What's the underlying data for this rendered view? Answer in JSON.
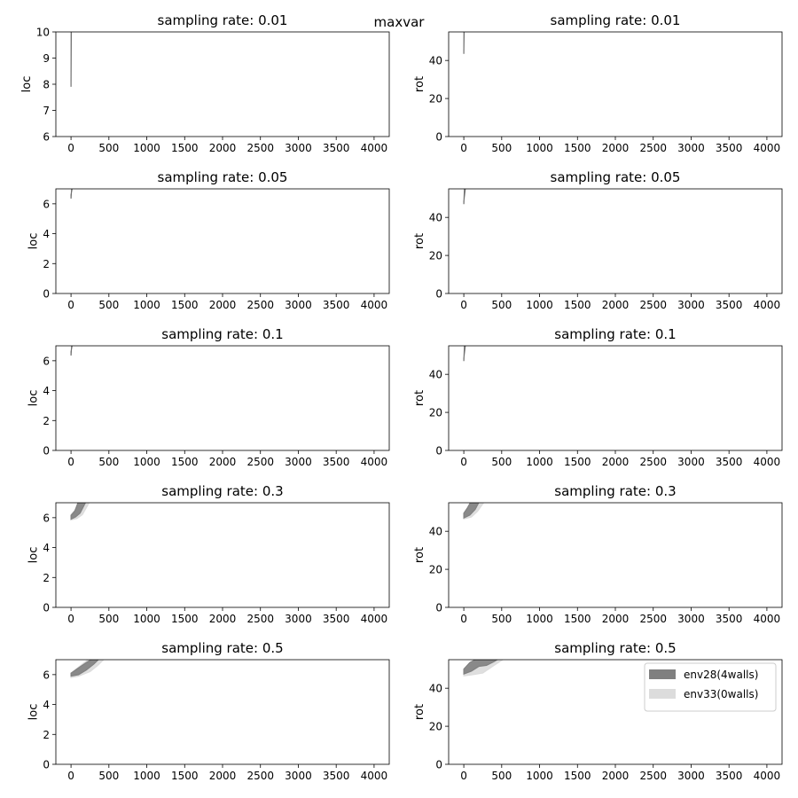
{
  "figure": {
    "suptitle": "maxvar",
    "legend": [
      {
        "label": "env28(4walls)",
        "color": "#808080"
      },
      {
        "label": "env33(0walls)",
        "color": "#dcdcdc"
      }
    ]
  },
  "chart_data": [
    {
      "type": "area",
      "title": "sampling rate: 0.01",
      "xlabel": "",
      "ylabel": "loc",
      "xlim": [
        -200,
        4200
      ],
      "ylim": [
        6,
        10
      ],
      "xticks": [
        0,
        500,
        1000,
        1500,
        2000,
        2500,
        3000,
        3500,
        4000
      ],
      "yticks": [
        6,
        7,
        8,
        9,
        10
      ],
      "series": [
        {
          "color": "#707070",
          "opacity": 1,
          "lower": [
            [
              0,
              7.9
            ],
            [
              3,
              10.5
            ]
          ],
          "upper": [
            [
              0,
              8.1
            ],
            [
              5,
              10.5
            ]
          ]
        }
      ]
    },
    {
      "type": "area",
      "title": "sampling rate: 0.01",
      "xlabel": "",
      "ylabel": "rot",
      "xlim": [
        -200,
        4200
      ],
      "ylim": [
        0,
        55
      ],
      "xticks": [
        0,
        500,
        1000,
        1500,
        2000,
        2500,
        3000,
        3500,
        4000
      ],
      "yticks": [
        0,
        20,
        40
      ],
      "series": [
        {
          "color": "#707070",
          "opacity": 1,
          "lower": [
            [
              0,
              43.5
            ],
            [
              2,
              56
            ]
          ],
          "upper": [
            [
              0,
              45
            ],
            [
              5,
              56
            ]
          ]
        }
      ]
    },
    {
      "type": "area",
      "title": "sampling rate: 0.05",
      "xlabel": "",
      "ylabel": "loc",
      "xlim": [
        -200,
        4200
      ],
      "ylim": [
        0,
        7
      ],
      "xticks": [
        0,
        500,
        1000,
        1500,
        2000,
        2500,
        3000,
        3500,
        4000
      ],
      "yticks": [
        0,
        2,
        4,
        6
      ],
      "series": [
        {
          "color": "#707070",
          "opacity": 1,
          "lower": [
            [
              0,
              6.35
            ],
            [
              10,
              7.1
            ]
          ],
          "upper": [
            [
              0,
              6.6
            ],
            [
              18,
              7.1
            ]
          ]
        }
      ]
    },
    {
      "type": "area",
      "title": "sampling rate: 0.05",
      "xlabel": "",
      "ylabel": "rot",
      "xlim": [
        -200,
        4200
      ],
      "ylim": [
        0,
        55
      ],
      "xticks": [
        0,
        500,
        1000,
        1500,
        2000,
        2500,
        3000,
        3500,
        4000
      ],
      "yticks": [
        0,
        20,
        40
      ],
      "series": [
        {
          "color": "#707070",
          "opacity": 1,
          "lower": [
            [
              0,
              47
            ],
            [
              10,
              56
            ]
          ],
          "upper": [
            [
              0,
              48.5
            ],
            [
              22,
              56
            ]
          ]
        }
      ]
    },
    {
      "type": "area",
      "title": "sampling rate: 0.1",
      "xlabel": "",
      "ylabel": "loc",
      "xlim": [
        -200,
        4200
      ],
      "ylim": [
        0,
        7
      ],
      "xticks": [
        0,
        500,
        1000,
        1500,
        2000,
        2500,
        3000,
        3500,
        4000
      ],
      "yticks": [
        0,
        2,
        4,
        6
      ],
      "series": [
        {
          "color": "#707070",
          "opacity": 1,
          "lower": [
            [
              0,
              6.35
            ],
            [
              10,
              7.1
            ]
          ],
          "upper": [
            [
              0,
              6.6
            ],
            [
              18,
              7.1
            ]
          ]
        }
      ]
    },
    {
      "type": "area",
      "title": "sampling rate: 0.1",
      "xlabel": "",
      "ylabel": "rot",
      "xlim": [
        -200,
        4200
      ],
      "ylim": [
        0,
        55
      ],
      "xticks": [
        0,
        500,
        1000,
        1500,
        2000,
        2500,
        3000,
        3500,
        4000
      ],
      "yticks": [
        0,
        20,
        40
      ],
      "series": [
        {
          "color": "#707070",
          "opacity": 1,
          "lower": [
            [
              0,
              47
            ],
            [
              10,
              56
            ]
          ],
          "upper": [
            [
              0,
              48.5
            ],
            [
              22,
              56
            ]
          ]
        }
      ]
    },
    {
      "type": "area",
      "title": "sampling rate: 0.3",
      "xlabel": "",
      "ylabel": "loc",
      "xlim": [
        -200,
        4200
      ],
      "ylim": [
        0,
        7
      ],
      "xticks": [
        0,
        500,
        1000,
        1500,
        2000,
        2500,
        3000,
        3500,
        4000
      ],
      "yticks": [
        0,
        2,
        4,
        6
      ],
      "series": [
        {
          "color": "#dcdcdc",
          "opacity": 0.9,
          "lower": [
            [
              0,
              5.85
            ],
            [
              80,
              5.95
            ],
            [
              150,
              6.2
            ],
            [
              250,
              7.1
            ]
          ],
          "upper": [
            [
              0,
              6.2
            ],
            [
              50,
              6.5
            ],
            [
              120,
              7.1
            ]
          ]
        },
        {
          "color": "#808080",
          "opacity": 0.9,
          "lower": [
            [
              0,
              5.9
            ],
            [
              60,
              6.05
            ],
            [
              120,
              6.3
            ],
            [
              200,
              7.1
            ]
          ],
          "upper": [
            [
              0,
              6.15
            ],
            [
              50,
              6.45
            ],
            [
              100,
              7.1
            ]
          ]
        }
      ]
    },
    {
      "type": "area",
      "title": "sampling rate: 0.3",
      "xlabel": "",
      "ylabel": "rot",
      "xlim": [
        -200,
        4200
      ],
      "ylim": [
        0,
        55
      ],
      "xticks": [
        0,
        500,
        1000,
        1500,
        2000,
        2500,
        3000,
        3500,
        4000
      ],
      "yticks": [
        0,
        20,
        40
      ],
      "series": [
        {
          "color": "#dcdcdc",
          "opacity": 0.9,
          "lower": [
            [
              0,
              46.5
            ],
            [
              100,
              47.5
            ],
            [
              180,
              50.5
            ],
            [
              280,
              56
            ]
          ],
          "upper": [
            [
              0,
              49
            ],
            [
              60,
              52
            ],
            [
              120,
              56
            ]
          ]
        },
        {
          "color": "#808080",
          "opacity": 0.9,
          "lower": [
            [
              0,
              47
            ],
            [
              80,
              48.5
            ],
            [
              150,
              51.5
            ],
            [
              210,
              56
            ]
          ],
          "upper": [
            [
              0,
              49.5
            ],
            [
              50,
              52.5
            ],
            [
              100,
              56
            ]
          ]
        }
      ]
    },
    {
      "type": "area",
      "title": "sampling rate: 0.5",
      "xlabel": "",
      "ylabel": "loc",
      "xlim": [
        -200,
        4200
      ],
      "ylim": [
        0,
        7
      ],
      "xticks": [
        0,
        500,
        1000,
        1500,
        2000,
        2500,
        3000,
        3500,
        4000
      ],
      "yticks": [
        0,
        2,
        4,
        6
      ],
      "series": [
        {
          "color": "#dcdcdc",
          "opacity": 0.9,
          "lower": [
            [
              0,
              5.8
            ],
            [
              100,
              5.9
            ],
            [
              250,
              6.2
            ],
            [
              350,
              6.6
            ],
            [
              450,
              7.1
            ]
          ],
          "upper": [
            [
              0,
              6.1
            ],
            [
              100,
              6.5
            ],
            [
              250,
              7.1
            ]
          ]
        },
        {
          "color": "#808080",
          "opacity": 0.9,
          "lower": [
            [
              0,
              5.9
            ],
            [
              100,
              6.0
            ],
            [
              200,
              6.3
            ],
            [
              300,
              6.7
            ],
            [
              380,
              7.1
            ]
          ],
          "upper": [
            [
              0,
              6.1
            ],
            [
              100,
              6.45
            ],
            [
              200,
              6.8
            ],
            [
              300,
              7.1
            ]
          ]
        }
      ]
    },
    {
      "type": "area",
      "title": "sampling rate: 0.5",
      "xlabel": "",
      "ylabel": "rot",
      "xlim": [
        -200,
        4200
      ],
      "ylim": [
        0,
        55
      ],
      "xticks": [
        0,
        500,
        1000,
        1500,
        2000,
        2500,
        3000,
        3500,
        4000
      ],
      "yticks": [
        0,
        20,
        40
      ],
      "series": [
        {
          "color": "#dcdcdc",
          "opacity": 0.9,
          "lower": [
            [
              0,
              46.5
            ],
            [
              100,
              47
            ],
            [
              250,
              48
            ],
            [
              400,
              52
            ],
            [
              550,
              56
            ]
          ],
          "upper": [
            [
              0,
              49
            ],
            [
              80,
              52
            ],
            [
              200,
              56
            ]
          ]
        },
        {
          "color": "#808080",
          "opacity": 0.9,
          "lower": [
            [
              0,
              47.5
            ],
            [
              100,
              49
            ],
            [
              200,
              51.5
            ],
            [
              300,
              52
            ],
            [
              400,
              54
            ],
            [
              480,
              56
            ]
          ],
          "upper": [
            [
              0,
              50
            ],
            [
              80,
              53.5
            ],
            [
              200,
              56
            ]
          ]
        }
      ]
    }
  ]
}
